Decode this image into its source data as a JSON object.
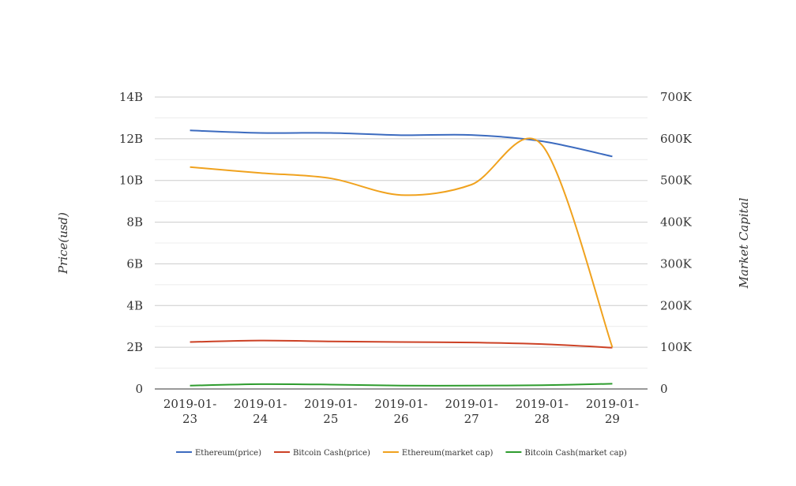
{
  "chart_data": {
    "type": "line",
    "title": "",
    "xlabel": "",
    "ylabel": "Price(usd)",
    "y2label": "Market Capital",
    "categories": [
      "2019-01-23",
      "2019-01-24",
      "2019-01-25",
      "2019-01-26",
      "2019-01-27",
      "2019-01-28",
      "2019-01-29"
    ],
    "ylim": [
      0,
      14000000000
    ],
    "y2lim": [
      0,
      700000
    ],
    "y_ticks": [
      "0",
      "2B",
      "4B",
      "6B",
      "8B",
      "10B",
      "12B",
      "14B"
    ],
    "y2_ticks": [
      "0",
      "100K",
      "200K",
      "300K",
      "400K",
      "500K",
      "600K",
      "700K"
    ],
    "grid": true,
    "legend_position": "bottom",
    "series": [
      {
        "name": "Ethereum(price)",
        "axis": "left",
        "color": "#3c6bbf",
        "values": [
          12400000000,
          12280000000,
          12280000000,
          12170000000,
          12180000000,
          11880000000,
          11150000000
        ]
      },
      {
        "name": "Bitcoin Cash(price)",
        "axis": "left",
        "color": "#cc4125",
        "values": [
          2250000000,
          2320000000,
          2280000000,
          2250000000,
          2230000000,
          2150000000,
          1980000000
        ]
      },
      {
        "name": "Ethereum(market cap)",
        "axis": "right",
        "color": "#f0a21e",
        "values": [
          532000,
          518000,
          505000,
          465000,
          490000,
          585000,
          100000
        ]
      },
      {
        "name": "Bitcoin Cash(market cap)",
        "axis": "right",
        "color": "#2e9c2e",
        "values": [
          8000,
          11500,
          10500,
          8000,
          8000,
          9000,
          12500
        ]
      }
    ]
  }
}
